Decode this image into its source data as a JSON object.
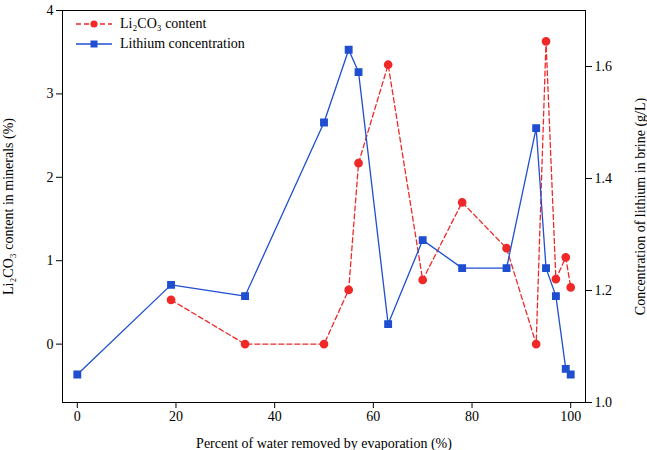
{
  "chart_data": {
    "type": "line",
    "x_label": "Percent of water removed by evaporation (%)",
    "y_label": "Li₂CO₃ content in minerals (%)",
    "y2_label": "Concentration of lithium in brine (g/L)",
    "xlim": [
      -3,
      103
    ],
    "xticks": [
      0,
      20,
      40,
      60,
      80,
      100
    ],
    "ylim": [
      -0.7,
      4
    ],
    "yticks": [
      0,
      1,
      2,
      3,
      4
    ],
    "y2lim": [
      1.0,
      1.7
    ],
    "y2ticks": [
      {
        "value": 1.0,
        "label": "1.0"
      },
      1.2,
      1.4,
      1.6
    ],
    "legend": "upper left",
    "series": [
      {
        "name": "Li₂CO₃ content",
        "color": "#f02828",
        "marker": "circle",
        "line_style": "dashed",
        "x": [
          19,
          34,
          50,
          55,
          57,
          63,
          70,
          78,
          87,
          93,
          95,
          97,
          99,
          100
        ],
        "values": [
          0.53,
          0,
          0,
          0.65,
          2.17,
          3.35,
          0.77,
          1.7,
          1.15,
          0,
          3.63,
          0.78,
          1.04,
          0.68
        ]
      },
      {
        "name": "Lithium concentration",
        "color": "#1f4fd0",
        "marker": "square",
        "line_style": "solid",
        "axis": "y2",
        "x": [
          0,
          19,
          34,
          50,
          55,
          57,
          63,
          70,
          78,
          87,
          93,
          95,
          97,
          99,
          100
        ],
        "values": [
          1.05,
          1.21,
          1.19,
          1.5,
          1.63,
          1.59,
          1.14,
          1.29,
          1.24,
          1.24,
          1.49,
          1.24,
          1.19,
          1.06,
          1.05
        ]
      }
    ]
  }
}
